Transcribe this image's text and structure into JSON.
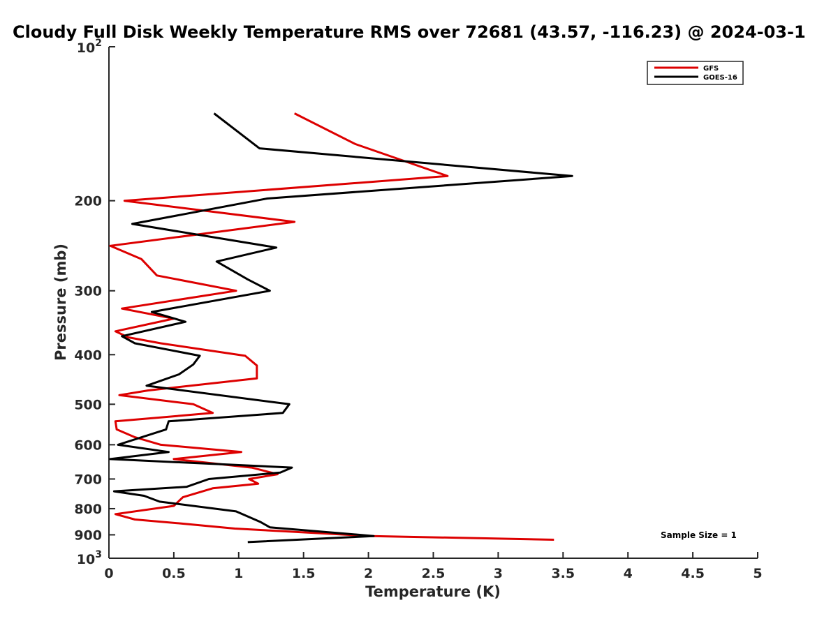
{
  "chart_data": {
    "type": "line",
    "title": "Cloudy Full Disk Weekly Temperature RMS over 72681 (43.57, -116.23) @ 2024-03-1",
    "xlabel": "Temperature (K)",
    "ylabel": "Pressure (mb)",
    "xlim": [
      0,
      5
    ],
    "ylim": [
      100,
      1000
    ],
    "y_scale": "log",
    "y_reversed": true,
    "x_ticks": [
      "0",
      "0.5",
      "1",
      "1.5",
      "2",
      "2.5",
      "3",
      "3.5",
      "4",
      "4.5",
      "5"
    ],
    "y_ticks": [
      {
        "value": 200,
        "label": "200"
      },
      {
        "value": 300,
        "label": "300"
      },
      {
        "value": 400,
        "label": "400"
      },
      {
        "value": 500,
        "label": "500"
      },
      {
        "value": 600,
        "label": "600"
      },
      {
        "value": 700,
        "label": "700"
      },
      {
        "value": 800,
        "label": "800"
      },
      {
        "value": 900,
        "label": "900"
      }
    ],
    "y_ends": [
      {
        "value": 100,
        "base": "10",
        "exp": "2"
      },
      {
        "value": 1000,
        "base": "10",
        "exp": "3"
      }
    ],
    "legend_position": "top-right",
    "annotation": "Sample Size = 1",
    "series": [
      {
        "name": "GFS",
        "color": "#dd0000",
        "points": [
          [
            1.43,
            135
          ],
          [
            1.9,
            155
          ],
          [
            2.61,
            179
          ],
          [
            0.12,
            200
          ],
          [
            1.43,
            220
          ],
          [
            0.01,
            245
          ],
          [
            0.25,
            260
          ],
          [
            0.37,
            280
          ],
          [
            0.98,
            300
          ],
          [
            0.1,
            325
          ],
          [
            0.5,
            340
          ],
          [
            0.05,
            360
          ],
          [
            0.15,
            370
          ],
          [
            0.4,
            380
          ],
          [
            1.05,
            402
          ],
          [
            1.14,
            420
          ],
          [
            1.14,
            445
          ],
          [
            0.3,
            470
          ],
          [
            0.08,
            480
          ],
          [
            0.65,
            500
          ],
          [
            0.8,
            520
          ],
          [
            0.05,
            540
          ],
          [
            0.06,
            560
          ],
          [
            0.2,
            580
          ],
          [
            0.4,
            600
          ],
          [
            1.02,
            620
          ],
          [
            0.5,
            640
          ],
          [
            1.1,
            665
          ],
          [
            1.3,
            685
          ],
          [
            1.08,
            700
          ],
          [
            1.15,
            715
          ],
          [
            0.8,
            730
          ],
          [
            0.57,
            760
          ],
          [
            0.5,
            790
          ],
          [
            0.05,
            820
          ],
          [
            0.2,
            840
          ],
          [
            0.55,
            855
          ],
          [
            0.97,
            875
          ],
          [
            2.02,
            905
          ],
          [
            3.43,
            920
          ]
        ]
      },
      {
        "name": "GOES-16",
        "color": "#000000",
        "points": [
          [
            0.81,
            135
          ],
          [
            1.16,
            158
          ],
          [
            3.57,
            179
          ],
          [
            1.22,
            198
          ],
          [
            0.18,
            222
          ],
          [
            1.29,
            247
          ],
          [
            0.83,
            263
          ],
          [
            1.07,
            285
          ],
          [
            1.24,
            300
          ],
          [
            0.33,
            330
          ],
          [
            0.59,
            345
          ],
          [
            0.1,
            368
          ],
          [
            0.2,
            380
          ],
          [
            0.7,
            402
          ],
          [
            0.65,
            418
          ],
          [
            0.54,
            437
          ],
          [
            0.29,
            460
          ],
          [
            1.39,
            500
          ],
          [
            1.34,
            520
          ],
          [
            0.46,
            540
          ],
          [
            0.44,
            560
          ],
          [
            0.07,
            600
          ],
          [
            0.46,
            620
          ],
          [
            0.01,
            640
          ],
          [
            1.41,
            665
          ],
          [
            1.32,
            680
          ],
          [
            0.77,
            700
          ],
          [
            0.6,
            725
          ],
          [
            0.04,
            740
          ],
          [
            0.27,
            755
          ],
          [
            0.39,
            775
          ],
          [
            0.98,
            810
          ],
          [
            1.17,
            850
          ],
          [
            1.24,
            870
          ],
          [
            2.04,
            905
          ],
          [
            1.07,
            930
          ]
        ]
      }
    ]
  }
}
